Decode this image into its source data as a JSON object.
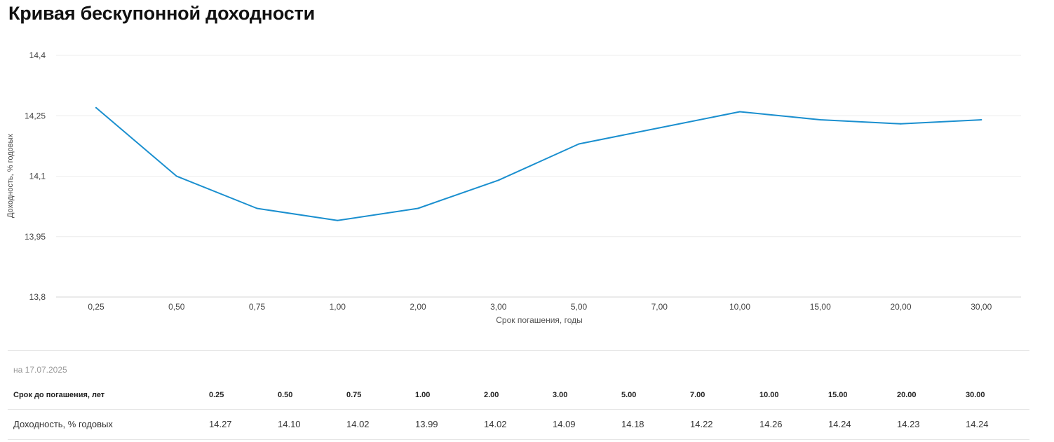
{
  "page": {
    "title": "Кривая бесkупонной доходности"
  },
  "chart_data": {
    "type": "line",
    "title": "Кривая бескупонной доходности",
    "xlabel": "Срок погашения, годы",
    "ylabel": "Доходность, % годовых",
    "categories": [
      "0,25",
      "0,50",
      "0,75",
      "1,00",
      "2,00",
      "3,00",
      "5,00",
      "7,00",
      "10,00",
      "15,00",
      "20,00",
      "30,00"
    ],
    "series": [
      {
        "values": [
          14.27,
          14.1,
          14.02,
          13.99,
          14.02,
          14.09,
          14.18,
          14.22,
          14.26,
          14.24,
          14.23,
          14.24
        ]
      }
    ],
    "yticks": [
      "13,8",
      "13,95",
      "14,1",
      "14,25",
      "14,4"
    ],
    "ylim": [
      13.8,
      14.4
    ],
    "grid": "horizontal",
    "line_color": "#1a8fcf"
  },
  "table": {
    "date": "на 17.07.2025",
    "head_label": "Срок до погашения, лет",
    "terms": [
      "0.25",
      "0.50",
      "0.75",
      "1.00",
      "2.00",
      "3.00",
      "5.00",
      "7.00",
      "10.00",
      "15.00",
      "20.00",
      "30.00"
    ],
    "row_label": "Доходность, % годовых",
    "values": [
      "14.27",
      "14.10",
      "14.02",
      "13.99",
      "14.02",
      "14.09",
      "14.18",
      "14.22",
      "14.26",
      "14.24",
      "14.23",
      "14.24"
    ]
  }
}
